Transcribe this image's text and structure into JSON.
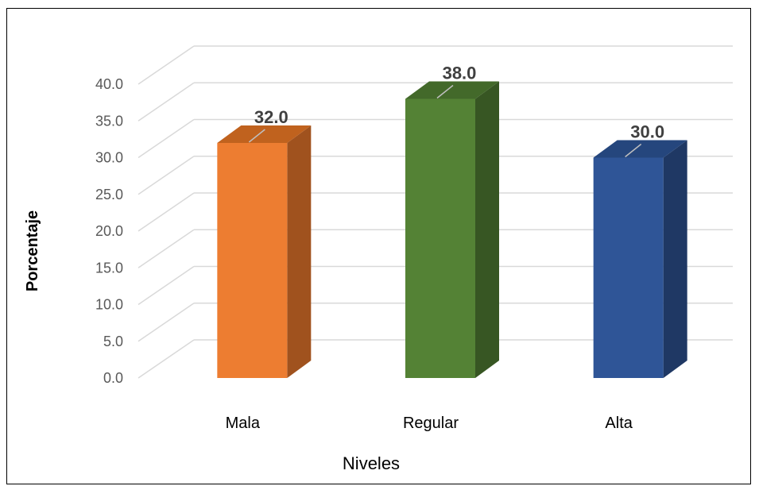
{
  "chart_data": {
    "type": "bar",
    "three_d": true,
    "categories": [
      "Mala",
      "Regular",
      "Alta"
    ],
    "values": [
      32.0,
      38.0,
      30.0
    ],
    "data_labels": [
      "32.0",
      "38.0",
      "30.0"
    ],
    "colors": [
      "#ED7D31",
      "#548235",
      "#2F5597"
    ],
    "side_colors": [
      "#A0521E",
      "#375623",
      "#1F3864"
    ],
    "top_colors": [
      "#C0621E",
      "#43692A",
      "#25467D"
    ],
    "xlabel": "Niveles",
    "ylabel": "Porcentaje",
    "ylim": [
      0,
      40
    ],
    "y_ticks": [
      "0.0",
      "5.0",
      "10.0",
      "15.0",
      "20.0",
      "25.0",
      "30.0",
      "35.0",
      "40.0"
    ],
    "grid": true,
    "legend": "none"
  }
}
